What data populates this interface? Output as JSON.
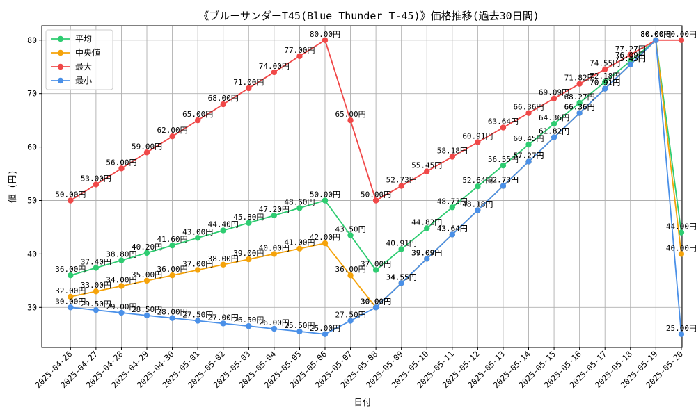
{
  "chart_data": {
    "type": "line",
    "title": "《ブルーサンダーT45(Blue Thunder T-45)》価格推移(過去30日間)",
    "xlabel": "日付",
    "ylabel": "値 (円)",
    "ylim": [
      22.5,
      82.7
    ],
    "yticks": [
      30,
      40,
      50,
      60,
      70,
      80
    ],
    "grid": true,
    "legend_position": "top-left",
    "value_suffix": "円",
    "categories": [
      "2025-04-26",
      "2025-04-27",
      "2025-04-28",
      "2025-04-29",
      "2025-04-30",
      "2025-05-01",
      "2025-05-02",
      "2025-05-03",
      "2025-05-04",
      "2025-05-05",
      "2025-05-06",
      "2025-05-07",
      "2025-05-08",
      "2025-05-09",
      "2025-05-10",
      "2025-05-11",
      "2025-05-12",
      "2025-05-13",
      "2025-05-14",
      "2025-05-15",
      "2025-05-16",
      "2025-05-17",
      "2025-05-18",
      "2025-05-19",
      "2025-05-20"
    ],
    "series": [
      {
        "name": "平均",
        "color": "#2ecc71",
        "values": [
          36.0,
          37.4,
          38.8,
          40.2,
          41.6,
          43.0,
          44.4,
          45.8,
          47.2,
          48.6,
          50.0,
          43.5,
          37.0,
          40.91,
          44.82,
          48.73,
          52.64,
          56.55,
          60.45,
          64.36,
          68.27,
          72.18,
          76.09,
          80.0,
          44.0
        ]
      },
      {
        "name": "中央値",
        "color": "#f5a30a",
        "values": [
          32.0,
          33.0,
          34.0,
          35.0,
          36.0,
          37.0,
          38.0,
          39.0,
          40.0,
          41.0,
          42.0,
          36.0,
          30.0,
          34.55,
          39.09,
          43.64,
          48.18,
          52.73,
          57.27,
          61.82,
          66.36,
          70.91,
          75.45,
          80.0,
          40.0
        ]
      },
      {
        "name": "最大",
        "color": "#f04848",
        "values": [
          50.0,
          53.0,
          56.0,
          59.0,
          62.0,
          65.0,
          68.0,
          71.0,
          74.0,
          77.0,
          80.0,
          65.0,
          50.0,
          52.73,
          55.45,
          58.18,
          60.91,
          63.64,
          66.36,
          69.09,
          71.82,
          74.55,
          77.27,
          80.0,
          80.0
        ]
      },
      {
        "name": "最小",
        "color": "#4a90e8",
        "values": [
          30.0,
          29.5,
          29.0,
          28.5,
          28.0,
          27.5,
          27.0,
          26.5,
          26.0,
          25.5,
          25.0,
          27.5,
          30.0,
          34.55,
          39.09,
          43.64,
          48.18,
          52.73,
          57.27,
          61.82,
          66.36,
          70.91,
          75.45,
          80.0,
          25.0
        ]
      }
    ]
  }
}
